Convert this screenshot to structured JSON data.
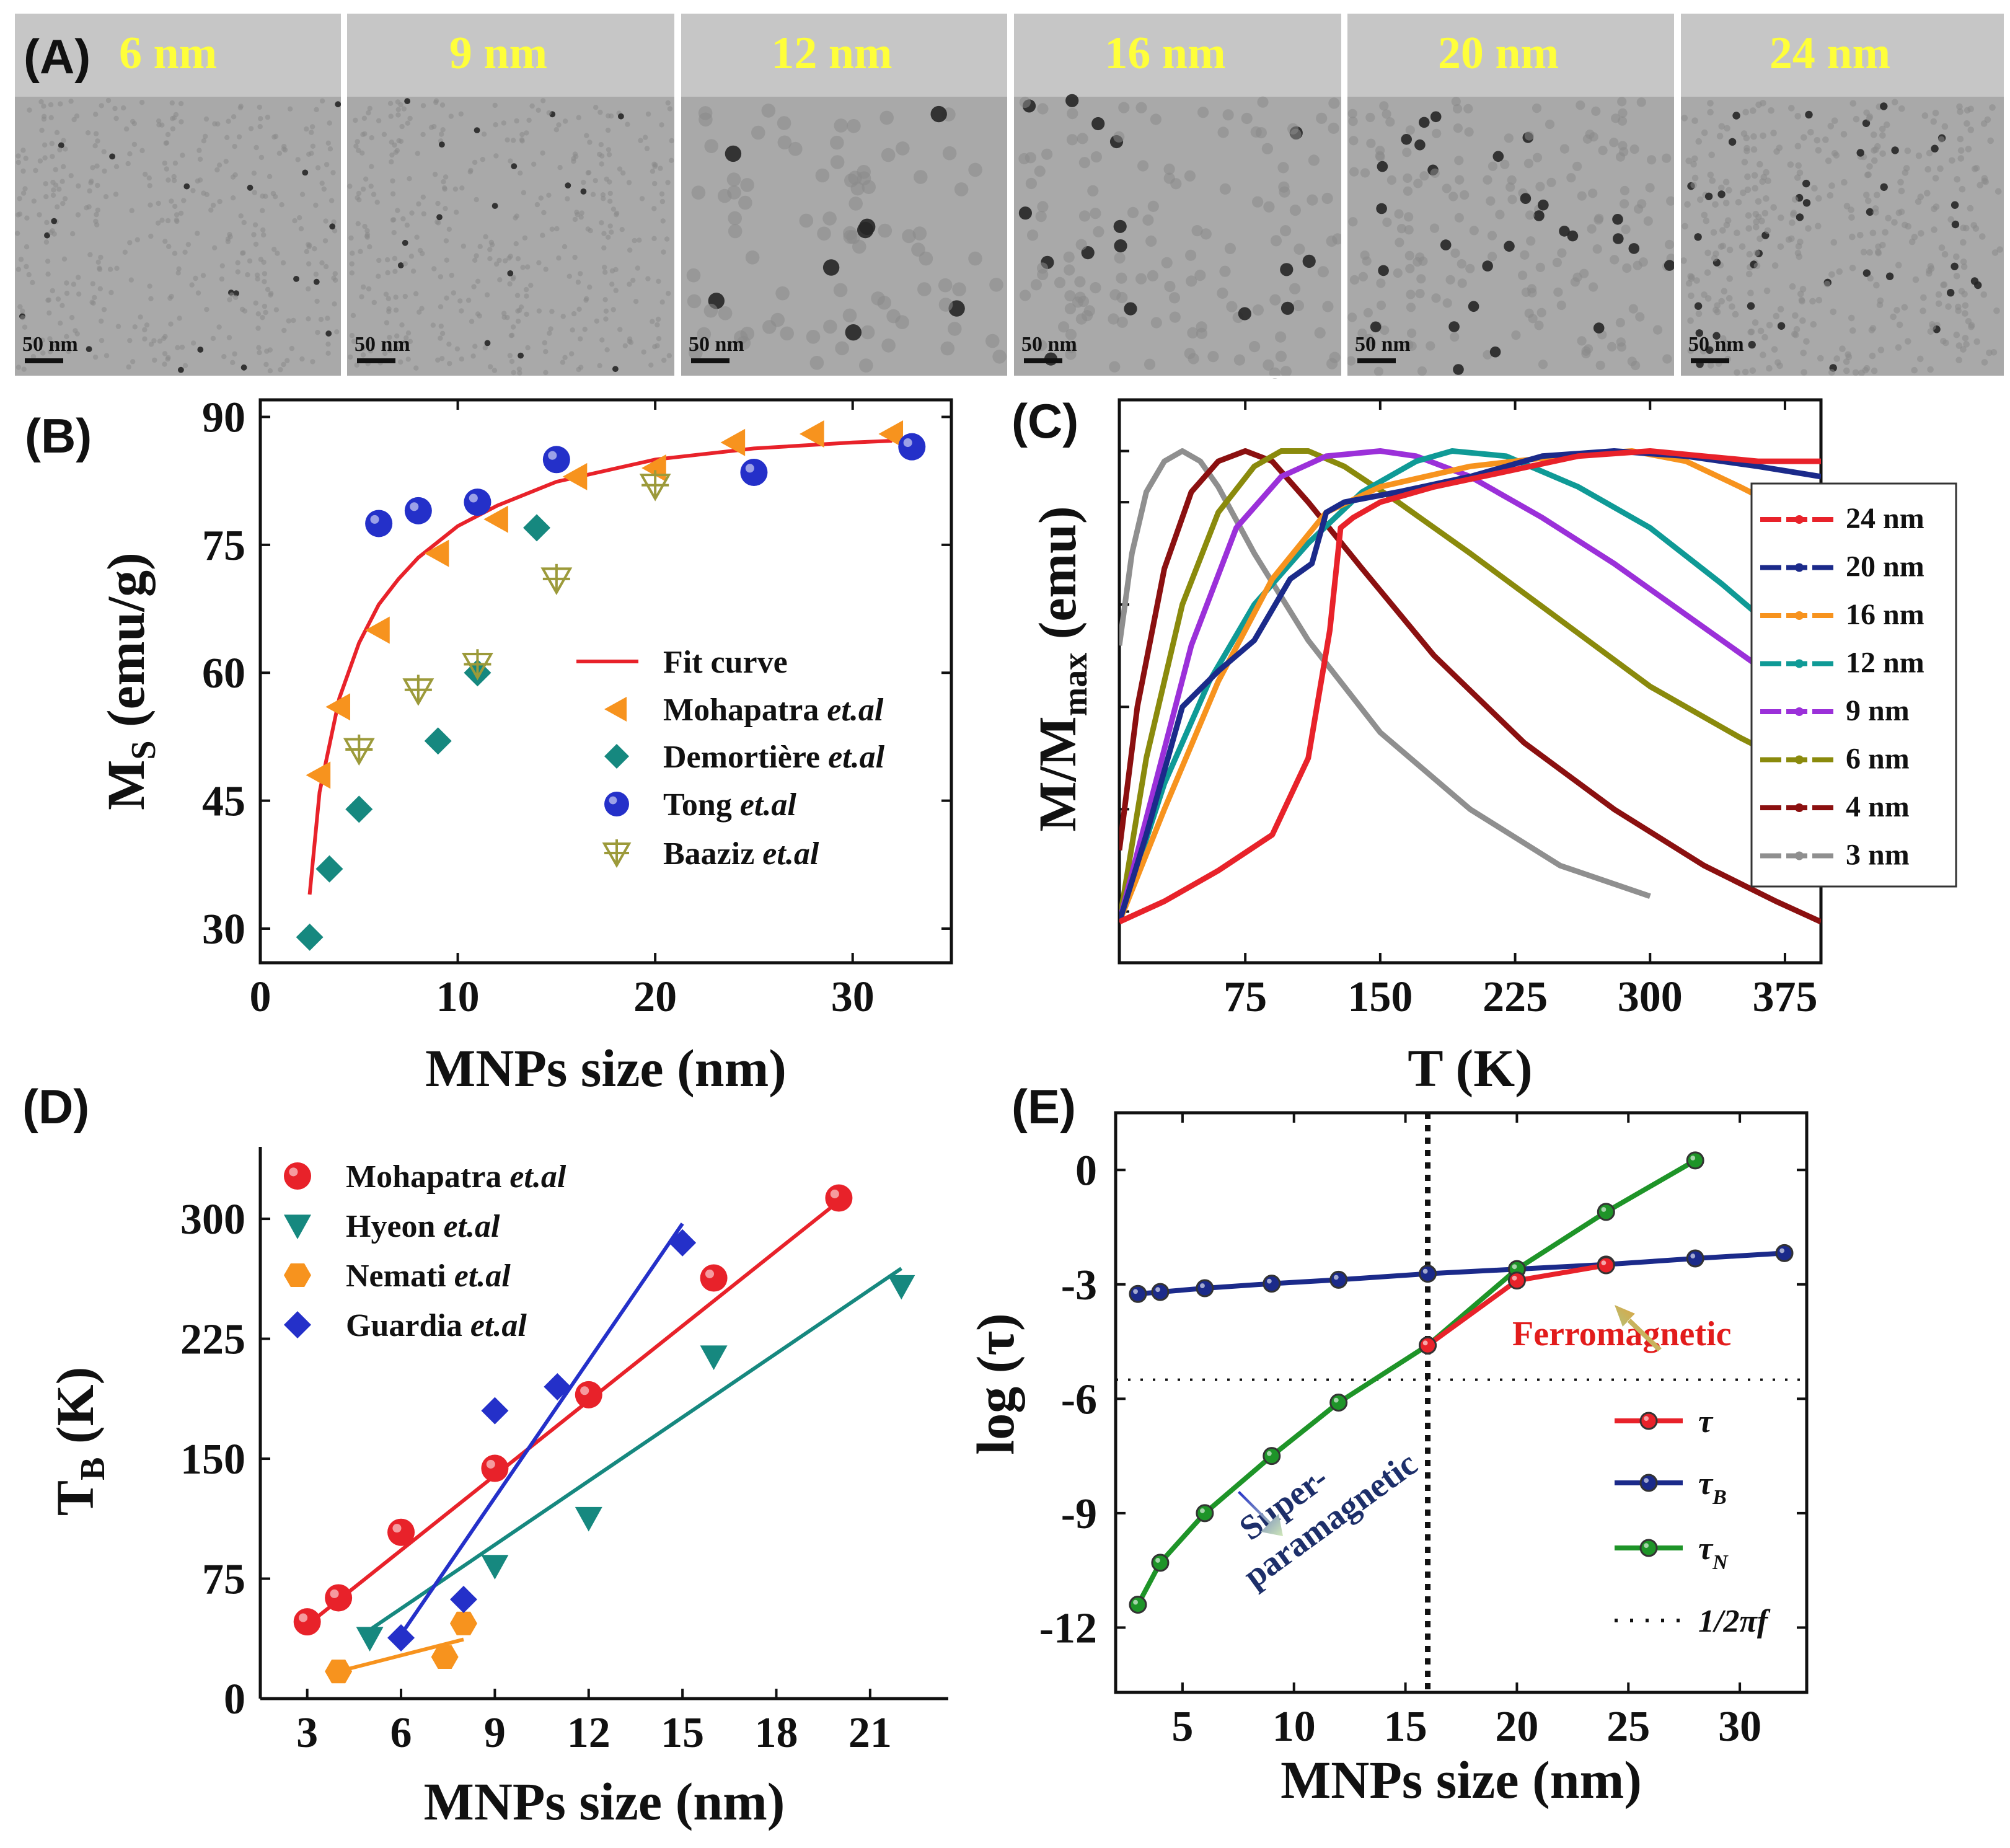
{
  "panel_labels": {
    "a": "(A)",
    "b": "(B)",
    "c": "(C)",
    "d": "(D)",
    "e": "(E)"
  },
  "tem": {
    "scale_bar": "50 nm",
    "images": [
      {
        "label": "6  nm",
        "density": 60,
        "dark": 0.03
      },
      {
        "label": "9 nm",
        "density": 42,
        "dark": 0.05
      },
      {
        "label": "12 nm",
        "density": 33,
        "dark": 0.12
      },
      {
        "label": "16  nm",
        "density": 27,
        "dark": 0.12
      },
      {
        "label": "20 nm",
        "density": 22,
        "dark": 0.1
      },
      {
        "label": "24 nm",
        "density": 16,
        "dark": 0.1
      }
    ]
  },
  "colors": {
    "red": "#e8222a",
    "orange": "#f7931e",
    "teal": "#16887f",
    "blue": "#2430c9",
    "olive": "#9c9a3a",
    "navy": "#1b2a8a",
    "purple": "#9b30d9",
    "darkred": "#8b1010",
    "gray": "#8f8f8f",
    "green": "#1e9428",
    "darkolive": "#8a8a0c",
    "tealC": "#0f9a96"
  },
  "chart_data": [
    {
      "panel": "B",
      "type": "scatter",
      "xlabel": "MNPs size (nm)",
      "ylabel": "M",
      "ylabel_sub": "S",
      "ylabel_unit": " (emu/g)",
      "xlim": [
        0,
        35
      ],
      "ylim": [
        26,
        92
      ],
      "xticks": [
        "0",
        "10",
        "20",
        "30"
      ],
      "xtick_values": [
        0,
        10,
        20,
        30
      ],
      "yticks": [
        "30",
        "45",
        "60",
        "75",
        "90"
      ],
      "ytick_values": [
        30,
        45,
        60,
        75,
        90
      ],
      "series": [
        {
          "name": "Fit curve",
          "marker": "line",
          "x": [
            2.5,
            3,
            4,
            5,
            6,
            7,
            8,
            10,
            12,
            15,
            20,
            25,
            30,
            32
          ],
          "y": [
            34,
            46,
            57,
            63.5,
            68,
            71,
            73.5,
            77.2,
            79.6,
            82.4,
            85,
            86.3,
            87,
            87.2
          ]
        },
        {
          "name": "Mohapatra ",
          "italic": "et.al",
          "marker": "triangle-left",
          "x": [
            3,
            4,
            6,
            9,
            12,
            16,
            20,
            24,
            28,
            32
          ],
          "y": [
            48,
            56,
            65,
            74,
            78,
            83,
            84,
            87,
            88,
            88
          ]
        },
        {
          "name": "Demortière ",
          "italic": "et.al",
          "marker": "diamond",
          "x": [
            2.5,
            3.5,
            5,
            9,
            11,
            14
          ],
          "y": [
            29,
            37,
            44,
            52,
            60,
            77
          ]
        },
        {
          "name": "Tong ",
          "italic": "et.al",
          "marker": "circle",
          "x": [
            6,
            8,
            11,
            15,
            25,
            33
          ],
          "y": [
            77.5,
            79,
            80,
            85,
            83.5,
            86.5
          ]
        },
        {
          "name": "Baaziz ",
          "italic": "et.al",
          "marker": "tri-plus",
          "x": [
            5,
            8,
            11,
            15,
            20
          ],
          "y": [
            51,
            58,
            61,
            71,
            82
          ]
        }
      ]
    },
    {
      "panel": "C",
      "type": "line",
      "xlabel": "T (K)",
      "ylabel": "M/M",
      "ylabel_sub": "max",
      "ylabel_unit": " (emu)",
      "xlim": [
        5,
        395
      ],
      "ylim": [
        0,
        1.1
      ],
      "xticks": [
        "75",
        "150",
        "225",
        "300",
        "375"
      ],
      "xtick_values": [
        75,
        150,
        225,
        300,
        375
      ],
      "series": [
        {
          "name": "24 nm",
          "x": [
            5,
            30,
            60,
            90,
            110,
            122,
            128,
            135,
            150,
            180,
            220,
            260,
            300,
            330,
            360,
            395
          ],
          "y": [
            0.08,
            0.12,
            0.18,
            0.25,
            0.4,
            0.65,
            0.85,
            0.87,
            0.9,
            0.93,
            0.96,
            0.99,
            1.0,
            0.99,
            0.98,
            0.98
          ]
        },
        {
          "name": "20 nm",
          "x": [
            5,
            20,
            40,
            60,
            80,
            100,
            112,
            120,
            130,
            160,
            200,
            240,
            280,
            320,
            360,
            395
          ],
          "y": [
            0.08,
            0.25,
            0.5,
            0.57,
            0.63,
            0.75,
            0.78,
            0.88,
            0.9,
            0.92,
            0.95,
            0.99,
            1.0,
            0.99,
            0.97,
            0.95
          ]
        },
        {
          "name": "16 nm",
          "x": [
            5,
            30,
            60,
            90,
            120,
            150,
            200,
            250,
            290,
            320,
            350,
            395
          ],
          "y": [
            0.08,
            0.3,
            0.55,
            0.75,
            0.88,
            0.93,
            0.97,
            0.99,
            1.0,
            0.98,
            0.93,
            0.85
          ]
        },
        {
          "name": "12 nm",
          "x": [
            5,
            30,
            55,
            80,
            110,
            140,
            170,
            190,
            220,
            260,
            300,
            340,
            380,
            395
          ],
          "y": [
            0.08,
            0.35,
            0.55,
            0.7,
            0.82,
            0.92,
            0.98,
            1.0,
            0.99,
            0.93,
            0.85,
            0.74,
            0.62,
            0.58
          ]
        },
        {
          "name": "9 nm",
          "x": [
            5,
            25,
            45,
            70,
            95,
            120,
            150,
            170,
            200,
            240,
            280,
            320,
            360,
            395
          ],
          "y": [
            0.08,
            0.35,
            0.62,
            0.85,
            0.95,
            0.99,
            1.0,
            0.99,
            0.95,
            0.87,
            0.78,
            0.68,
            0.58,
            0.5
          ]
        },
        {
          "name": "6 nm",
          "x": [
            5,
            20,
            40,
            60,
            80,
            95,
            110,
            130,
            160,
            200,
            250,
            300,
            350,
            395
          ],
          "y": [
            0.08,
            0.4,
            0.7,
            0.88,
            0.97,
            1.0,
            1.0,
            0.97,
            0.9,
            0.8,
            0.67,
            0.54,
            0.44,
            0.36
          ]
        },
        {
          "name": "4 nm",
          "x": [
            5,
            15,
            30,
            45,
            60,
            75,
            90,
            110,
            140,
            180,
            230,
            280,
            330,
            370,
            395
          ],
          "y": [
            0.22,
            0.5,
            0.77,
            0.92,
            0.98,
            1.0,
            0.98,
            0.9,
            0.77,
            0.6,
            0.43,
            0.3,
            0.19,
            0.12,
            0.08
          ]
        },
        {
          "name": "3 nm",
          "x": [
            5,
            12,
            20,
            30,
            40,
            50,
            60,
            80,
            110,
            150,
            200,
            250,
            300
          ],
          "y": [
            0.62,
            0.8,
            0.92,
            0.98,
            1.0,
            0.98,
            0.93,
            0.8,
            0.63,
            0.45,
            0.3,
            0.19,
            0.13
          ]
        }
      ]
    },
    {
      "panel": "D",
      "type": "scatter",
      "xlabel": "MNPs size (nm)",
      "ylabel": "T",
      "ylabel_sub": "B",
      "ylabel_unit": " (K)",
      "xlim": [
        1.5,
        23.5
      ],
      "ylim": [
        0,
        345
      ],
      "xticks": [
        "3",
        "6",
        "9",
        "12",
        "15",
        "18",
        "21"
      ],
      "xtick_values": [
        3,
        6,
        9,
        12,
        15,
        18,
        21
      ],
      "yticks": [
        "0",
        "75",
        "150",
        "225",
        "300"
      ],
      "ytick_values": [
        0,
        75,
        150,
        225,
        300
      ],
      "series": [
        {
          "name": "Mohapatra ",
          "italic": "et.al",
          "marker": "circle",
          "x": [
            3,
            4,
            6,
            9,
            12,
            16,
            20
          ],
          "y": [
            48,
            63,
            104,
            144,
            190,
            263,
            313
          ],
          "fit": {
            "x": [
              3,
              20
            ],
            "y": [
              46,
              311
            ]
          }
        },
        {
          "name": "Hyeon ",
          "italic": "et.al",
          "marker": "triangle-down",
          "x": [
            5,
            9,
            12,
            16,
            22
          ],
          "y": [
            38,
            83,
            113,
            214,
            258
          ],
          "fit": {
            "x": [
              5,
              22
            ],
            "y": [
              43,
              269
            ]
          }
        },
        {
          "name": "Nemati ",
          "italic": "et.al",
          "marker": "hexagon",
          "x": [
            4,
            7.4,
            8
          ],
          "y": [
            17,
            26,
            47
          ],
          "fit": {
            "x": [
              4,
              8
            ],
            "y": [
              17,
              37
            ]
          }
        },
        {
          "name": "Guardia ",
          "italic": "et.al",
          "marker": "diamond",
          "x": [
            6,
            8,
            9,
            11,
            15
          ],
          "y": [
            38,
            62,
            180,
            195,
            285
          ],
          "fit": {
            "x": [
              6,
              15
            ],
            "y": [
              40,
              297
            ]
          }
        }
      ]
    },
    {
      "panel": "E",
      "type": "line",
      "xlabel": "MNPs size (nm)",
      "ylabel": "log (τ)",
      "xlim": [
        2,
        33
      ],
      "ylim": [
        -13.7,
        1.5
      ],
      "xticks": [
        "5",
        "10",
        "15",
        "20",
        "25",
        "30"
      ],
      "xtick_values": [
        5,
        10,
        15,
        20,
        25,
        30
      ],
      "yticks": [
        "-12",
        "-9",
        "-6",
        "-3",
        "0"
      ],
      "ytick_values": [
        -12,
        -9,
        -6,
        -3,
        0
      ],
      "vline_x": 16,
      "hline_y": -5.5,
      "series": [
        {
          "name": "τ",
          "sub": "",
          "x": [
            16,
            20,
            24
          ],
          "y": [
            -4.6,
            -2.9,
            -2.5
          ]
        },
        {
          "name": "τ",
          "sub": "B",
          "x": [
            3,
            4,
            6,
            9,
            12,
            16,
            20,
            24,
            28,
            32
          ],
          "y": [
            -3.25,
            -3.2,
            -3.1,
            -2.98,
            -2.88,
            -2.72,
            -2.6,
            -2.48,
            -2.32,
            -2.18
          ]
        },
        {
          "name": "τ",
          "sub": "N",
          "x": [
            3,
            4,
            6,
            9,
            12,
            16,
            20,
            24,
            28
          ],
          "y": [
            -11.4,
            -10.3,
            -9.0,
            -7.5,
            -6.1,
            -4.6,
            -2.6,
            -1.1,
            0.25
          ]
        },
        {
          "name": "1/2π",
          "italic": "f",
          "marker": "dots"
        }
      ],
      "annotations": {
        "ferro": "Ferromagnetic",
        "super1": "Super-",
        "super2": "paramagnetic"
      }
    }
  ]
}
